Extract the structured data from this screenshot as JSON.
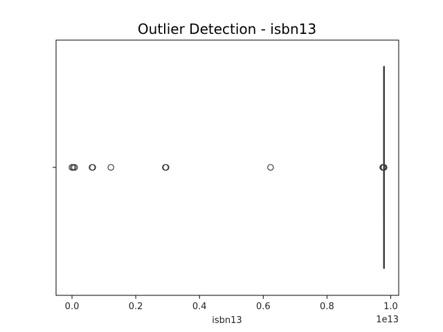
{
  "chart_data": {
    "type": "boxplot",
    "orientation": "horizontal",
    "title": "Outlier Detection - isbn13",
    "xlabel": "isbn13",
    "ylabel": "",
    "x_scale_offset_label": "1e13",
    "xlim": [
      -0.05,
      1.025
    ],
    "xticks": [
      0.0,
      0.2,
      0.4,
      0.6,
      0.8,
      1.0
    ],
    "xtick_labels": [
      "0.0",
      "0.2",
      "0.4",
      "0.6",
      "0.8",
      "1.0"
    ],
    "grid": false,
    "legend": "none",
    "box": {
      "whisker_low": 0.978,
      "q1": 0.978,
      "median": 0.978,
      "q3": 0.9781,
      "whisker_high": 0.9781
    },
    "outliers": [
      0.0,
      0.004,
      0.008,
      0.063,
      0.065,
      0.122,
      0.293,
      0.295,
      0.623,
      0.975,
      0.977,
      0.979
    ],
    "colors": {
      "box_edge": "#3a3a3a",
      "outlier_edge": "#3a3a3a",
      "axes": "#000000"
    }
  }
}
